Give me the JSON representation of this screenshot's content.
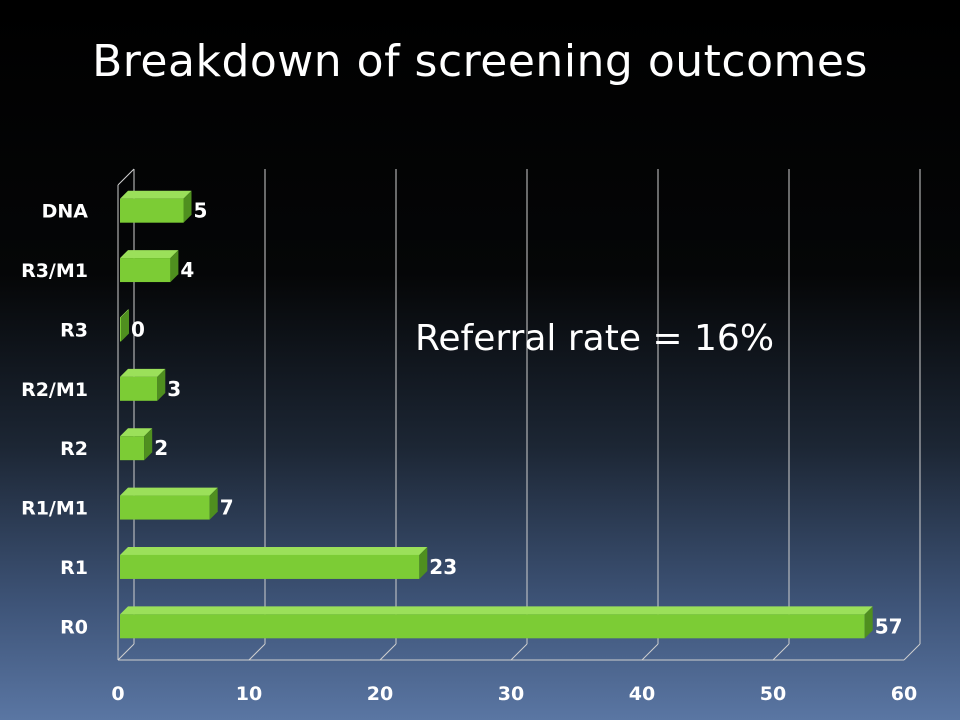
{
  "title": "Breakdown of screening outcomes",
  "chart_data": {
    "type": "bar",
    "orientation": "horizontal",
    "categories": [
      "R0",
      "R1",
      "R1/M1",
      "R2",
      "R2/M1",
      "R3",
      "R3/M1",
      "DNA"
    ],
    "values": [
      57,
      23,
      7,
      2,
      3,
      0,
      4,
      5
    ],
    "xlim": [
      0,
      60
    ],
    "xticks": [
      "0",
      "10",
      "20",
      "30",
      "40",
      "50",
      "60"
    ],
    "grid": true,
    "legend": "none",
    "annotation": "Referral rate = 16%",
    "colors": {
      "bar_front": "#7ccc35",
      "bar_top": "#9be05a",
      "bar_side": "#4f8f1f",
      "grid": "#cfcfcf",
      "text": "#ffffff"
    }
  }
}
